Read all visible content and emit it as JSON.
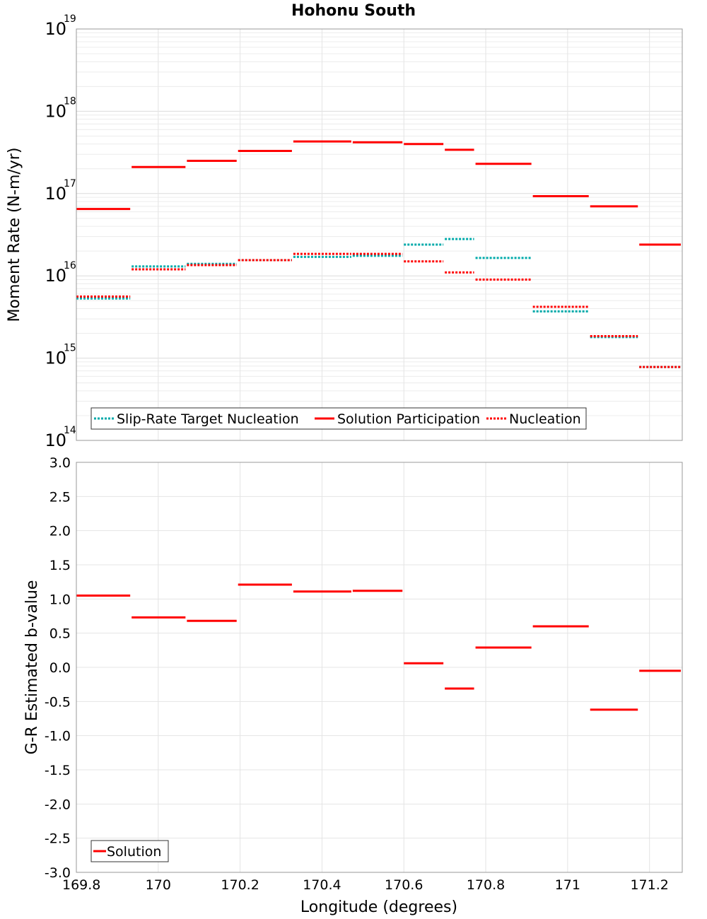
{
  "chart_data": [
    {
      "type": "line",
      "title": "Hohonu South",
      "ylabel": "Moment Rate (N-m/yr)",
      "xlabel": "",
      "yscale": "log",
      "ylim": [
        100000000000000.0,
        1e+19
      ],
      "xlim": [
        169.8,
        171.28
      ],
      "yticks": [
        {
          "base": "10",
          "exp": "14"
        },
        {
          "base": "10",
          "exp": "15"
        },
        {
          "base": "10",
          "exp": "16"
        },
        {
          "base": "10",
          "exp": "17"
        },
        {
          "base": "10",
          "exp": "18"
        },
        {
          "base": "10",
          "exp": "19"
        }
      ],
      "grid": true,
      "legend_position": "bottom-left",
      "series": [
        {
          "name": "Slip-Rate Target Nucleation",
          "color": "#00aaaa",
          "style": "dotted",
          "segments": [
            {
              "x": [
                169.8,
                169.935
              ],
              "y": 5300000000000000.0
            },
            {
              "x": [
                169.935,
                170.07
              ],
              "y": 1.3e+16
            },
            {
              "x": [
                170.07,
                170.195
              ],
              "y": 1.4e+16
            },
            {
              "x": [
                170.195,
                170.33
              ],
              "y": 1.55e+16
            },
            {
              "x": [
                170.33,
                170.475
              ],
              "y": 1.7e+16
            },
            {
              "x": [
                170.475,
                170.6
              ],
              "y": 1.75e+16
            },
            {
              "x": [
                170.6,
                170.7
              ],
              "y": 2.4e+16
            },
            {
              "x": [
                170.7,
                170.775
              ],
              "y": 2.8e+16
            },
            {
              "x": [
                170.775,
                170.915
              ],
              "y": 1.65e+16
            },
            {
              "x": [
                170.915,
                171.055
              ],
              "y": 3700000000000000.0
            },
            {
              "x": [
                171.055,
                171.175
              ],
              "y": 1800000000000000.0
            },
            {
              "x": [
                171.175,
                171.28
              ],
              "y": 780000000000000.0
            }
          ]
        },
        {
          "name": "Solution Participation",
          "color": "#ff0000",
          "style": "solid",
          "segments": [
            {
              "x": [
                169.8,
                169.935
              ],
              "y": 6.5e+16
            },
            {
              "x": [
                169.935,
                170.07
              ],
              "y": 2.1e+17
            },
            {
              "x": [
                170.07,
                170.195
              ],
              "y": 2.5e+17
            },
            {
              "x": [
                170.195,
                170.33
              ],
              "y": 3.3e+17
            },
            {
              "x": [
                170.33,
                170.475
              ],
              "y": 4.3e+17
            },
            {
              "x": [
                170.475,
                170.6
              ],
              "y": 4.2e+17
            },
            {
              "x": [
                170.6,
                170.7
              ],
              "y": 4e+17
            },
            {
              "x": [
                170.7,
                170.775
              ],
              "y": 3.4e+17
            },
            {
              "x": [
                170.775,
                170.915
              ],
              "y": 2.3e+17
            },
            {
              "x": [
                170.915,
                171.055
              ],
              "y": 9.3e+16
            },
            {
              "x": [
                171.055,
                171.175
              ],
              "y": 7e+16
            },
            {
              "x": [
                171.175,
                171.28
              ],
              "y": 2.4e+16
            }
          ]
        },
        {
          "name": "Nucleation",
          "color": "#ff0000",
          "style": "dotted",
          "segments": [
            {
              "x": [
                169.8,
                169.935
              ],
              "y": 5600000000000000.0
            },
            {
              "x": [
                169.935,
                170.07
              ],
              "y": 1.2e+16
            },
            {
              "x": [
                170.07,
                170.195
              ],
              "y": 1.35e+16
            },
            {
              "x": [
                170.195,
                170.33
              ],
              "y": 1.55e+16
            },
            {
              "x": [
                170.33,
                170.475
              ],
              "y": 1.85e+16
            },
            {
              "x": [
                170.475,
                170.6
              ],
              "y": 1.85e+16
            },
            {
              "x": [
                170.6,
                170.7
              ],
              "y": 1.5e+16
            },
            {
              "x": [
                170.7,
                170.775
              ],
              "y": 1.1e+16
            },
            {
              "x": [
                170.775,
                170.915
              ],
              "y": 9000000000000000.0
            },
            {
              "x": [
                170.915,
                171.055
              ],
              "y": 4200000000000000.0
            },
            {
              "x": [
                171.055,
                171.175
              ],
              "y": 1850000000000000.0
            },
            {
              "x": [
                171.175,
                171.28
              ],
              "y": 780000000000000.0
            }
          ]
        }
      ]
    },
    {
      "type": "line",
      "title": "",
      "ylabel": "G-R Estimated b-value",
      "xlabel": "Longitude (degrees)",
      "ylim": [
        -3.0,
        3.0
      ],
      "xlim": [
        169.8,
        171.28
      ],
      "yticks": [
        "-3.0",
        "-2.5",
        "-2.0",
        "-1.5",
        "-1.0",
        "-0.5",
        "0.0",
        "0.5",
        "1.0",
        "1.5",
        "2.0",
        "2.5",
        "3.0"
      ],
      "xticks": [
        "169.8",
        "170",
        "170.2",
        "170.4",
        "170.6",
        "170.8",
        "171",
        "171.2"
      ],
      "grid": true,
      "legend_position": "bottom-left",
      "series": [
        {
          "name": "Solution",
          "color": "#ff0000",
          "style": "solid",
          "segments": [
            {
              "x": [
                169.8,
                169.935
              ],
              "y": 1.05
            },
            {
              "x": [
                169.935,
                170.07
              ],
              "y": 0.73
            },
            {
              "x": [
                170.07,
                170.195
              ],
              "y": 0.68
            },
            {
              "x": [
                170.195,
                170.33
              ],
              "y": 1.21
            },
            {
              "x": [
                170.33,
                170.475
              ],
              "y": 1.11
            },
            {
              "x": [
                170.475,
                170.6
              ],
              "y": 1.12
            },
            {
              "x": [
                170.6,
                170.7
              ],
              "y": 0.06
            },
            {
              "x": [
                170.7,
                170.775
              ],
              "y": -0.31
            },
            {
              "x": [
                170.775,
                170.915
              ],
              "y": 0.29
            },
            {
              "x": [
                170.915,
                171.055
              ],
              "y": 0.6
            },
            {
              "x": [
                171.055,
                171.175
              ],
              "y": -0.62
            },
            {
              "x": [
                171.175,
                171.28
              ],
              "y": -0.05
            }
          ]
        }
      ]
    }
  ]
}
